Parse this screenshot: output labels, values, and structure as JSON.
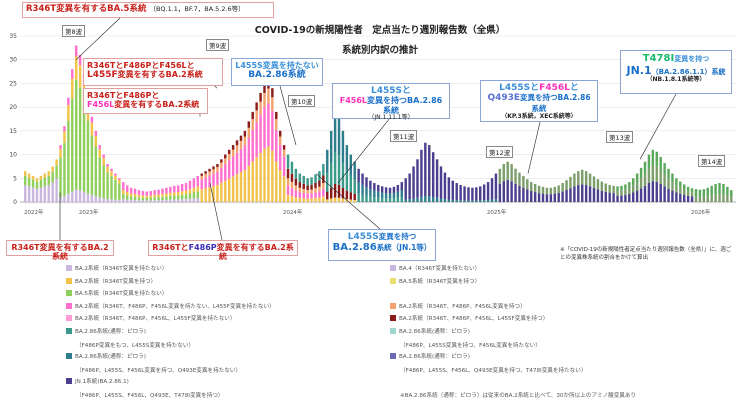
{
  "header": {
    "y_unit": "",
    "title_line1": "COVID-19の新規陽性者　定点当たり週別報告数（全県）",
    "title_line2": "系統別内訳の推計"
  },
  "note_right": "※「COVID-19の新規陽性者定点当たり週別報告数（全県）」に、週ごとの変異株系統の割合をかけて算出",
  "colors": {
    "ba2": "#c9b7e0",
    "ba4": "#c9b7e0",
    "ba5": "#8fcf5c",
    "ba275": "#f2c24a",
    "ba2_r346t": "#ff6fcf",
    "ba2_f456l": "#f2a36b",
    "ba2_l455f": "#8b1a1a",
    "ba286": "#3a9a8a",
    "ba286_l455s": "#2e7d8c",
    "jn1": "#4b3f8f",
    "kp3": "#6b6bb5"
  },
  "callouts": {
    "c1": {
      "main_pre": "R346T変異を有する",
      "main_accent": "BA.5",
      "main_post": "系統",
      "sub": "（BQ.1.1，BF.7，BA.5.2.6等）"
    },
    "c2": {
      "line1_pre": "R346Tと",
      "line1_mid": "F486P",
      "line1_and": "と",
      "line1_acc2": "F456L",
      "line1_end": "と",
      "line2_accent": "L455F",
      "line2_post": "変異を有するBA.2系統"
    },
    "c3": {
      "line1_pre": "R346TとF486Pと",
      "line2_accent": "F456L",
      "line2_post": "変異を有するBA.2系統"
    },
    "c4": {
      "line1_accent": "L455S",
      "line1_post": "変異を持たない",
      "line2": "BA.2.86系統"
    },
    "c5": {
      "line1": "L455Sと",
      "line2_accent": "F456L",
      "line2_post": "変異を持つBA.2.86系統",
      "sub": "（JN.1.11.1等）"
    },
    "c6": {
      "line1_a": "L455S",
      "line1_b": "と",
      "line1_c": "F456L",
      "line1_d": "と",
      "line2_accent": "Q493E",
      "line2_post": "変異を持つBA.2.86系統",
      "sub": "（KP.3系統，XEC系統等）"
    },
    "c7": {
      "line1_accent": "T478I",
      "line1_post": "変異を持つ",
      "line2_accent": "JN.1",
      "line2_post": "（BA.2.86.1.1）系統",
      "sub": "（NB.1.8.1系統等）"
    },
    "c8": {
      "text": "R346T変異を有するBA.2系統"
    },
    "c9": {
      "pre": "R346Tと",
      "accent": "F486P",
      "post": "変異を有するBA.2系統"
    },
    "c10": {
      "line1_accent": "L455S",
      "line1_post": "変異を持つ",
      "line2_accent": "BA.2.86",
      "line2_post": "系統（JN.1等）"
    }
  },
  "waves": [
    "第8波",
    "第9波",
    "第10波",
    "第11波",
    "第12波",
    "第13波",
    "第14波"
  ],
  "legend": [
    {
      "label": "BA.2系統（R346T変異を持たない）",
      "color": "#c9b7e0"
    },
    {
      "label": "BA.4（R346T変異を持たない）",
      "color": "#c9b7e0"
    },
    {
      "label": "BA.2系統（R346T変異を持つ）",
      "color": "#f2c24a"
    },
    {
      "label": "BA.5系統（R346T変異を持つ）",
      "color": "#e8e070"
    },
    {
      "label": "BA.5系統（R346T変異を持たない）",
      "color": "#8fcf5c"
    },
    {
      "label": "",
      "color": ""
    },
    {
      "label": "BA.2系統（R346T、F486P、F456L変異を持たない、L455F変異を持たない）",
      "color": "#ff6fcf"
    },
    {
      "label": "BA.2系統（R346T、F486P、F456L変異を持つ）",
      "color": "#f2a36b"
    },
    {
      "label": "BA.2系統（R346T、F486P、F456L、L455F変異を持たない）",
      "color": "#ff9ad5"
    },
    {
      "label": "BA.2系統（R346T、F486P、F456L、L455F変異を持つ）",
      "color": "#8b1a1a"
    },
    {
      "label": "BA.2.86系統(通称：ピロラ)",
      "color": "#3a9a8a"
    },
    {
      "label": "BA.2.86系統(通称：ピロラ)",
      "color": "#9fd6cf"
    },
    {
      "label": "（F486P変異をもつ、L455S変異を持たない）",
      "color": ""
    },
    {
      "label": "（F486P、L455S変異を持つ、F456L変異を持たない）",
      "color": ""
    },
    {
      "label": "BA.2.86系統(通称：ピロラ)",
      "color": "#2e7d8c"
    },
    {
      "label": "BA.2.86系統(通称：ピロラ)",
      "color": "#6b6bb5"
    },
    {
      "label": "（F486P、L455S、F456L変異を持つ、Q493E変異を持たない）",
      "color": ""
    },
    {
      "label": "（F486P、L455S、F456L、Q493E変異を持つ、T478I変異を持たない）",
      "color": ""
    },
    {
      "label": "JN.1系統(BA.2.86.1)",
      "color": "#4b3f8f"
    },
    {
      "label": "",
      "color": ""
    },
    {
      "label": "（F486P、L455S、F456L、Q493E、T478I変異を持つ）",
      "color": ""
    },
    {
      "label": "※BA.2.86系統（通称：ピロラ）は従来のBA.2系統と比べて、30か所以上のアミノ酸変異あり",
      "color": ""
    }
  ],
  "chart_data": {
    "type": "bar",
    "title": "COVID-19の新規陽性者　定点当たり週別報告数（全県） 系統別内訳の推計",
    "ylabel": "",
    "ylim": [
      0,
      35
    ],
    "yticks": [
      0,
      5,
      10,
      15,
      20,
      25,
      30,
      35
    ],
    "year_labels": [
      "2022年",
      "2023年",
      "2024年",
      "2025年",
      "2026年"
    ],
    "series_order": [
      "BA.2/BA.4",
      "BA.5",
      "BA.2.75",
      "BA.2(R346T,F486P)",
      "BA.2(F456L)",
      "BA.2(L455F)",
      "BA.2.86",
      "BA.2.86(L455S)",
      "JN.1",
      "KP.3/XEC",
      "JN.1(T478I)"
    ],
    "totals": [
      6.5,
      6.0,
      5.5,
      5.0,
      5.5,
      6.0,
      6.5,
      7.5,
      9,
      12,
      16,
      22,
      28,
      33,
      31,
      27,
      22,
      18,
      15,
      12,
      10,
      8,
      7,
      6,
      5,
      4.2,
      3.5,
      3,
      2.8,
      2.5,
      2.3,
      2.2,
      2.3,
      2.5,
      2.6,
      2.8,
      3,
      3.2,
      3.4,
      3.5,
      3.8,
      4,
      4.5,
      5,
      5.5,
      6,
      6.5,
      7,
      7.5,
      8,
      9,
      10,
      11,
      12,
      13,
      14,
      15,
      17,
      19,
      21,
      23,
      25,
      26,
      24,
      19,
      15,
      12,
      10,
      8.5,
      7,
      6,
      5.5,
      5,
      5.2,
      5.8,
      6.5,
      8,
      11,
      15,
      19,
      18,
      15,
      12,
      10,
      8.5,
      7,
      6,
      5.2,
      4.5,
      4,
      3.6,
      3.3,
      3.1,
      3,
      3.2,
      3.6,
      4.2,
      5,
      6,
      7.5,
      9,
      11,
      12.5,
      12,
      10.5,
      9,
      7.5,
      6.2,
      5.2,
      4.5,
      4,
      3.6,
      3.3,
      3.1,
      3,
      3.1,
      3.3,
      3.7,
      4.2,
      5,
      6,
      7,
      8,
      8.5,
      8,
      7,
      6.2,
      5.5,
      4.8,
      4.2,
      3.8,
      3.4,
      3.2,
      3,
      3,
      3.2,
      3.5,
      4,
      4.6,
      5.3,
      6,
      6.5,
      6.8,
      6.5,
      6,
      5.4,
      4.8,
      4.3,
      3.9,
      3.6,
      3.4,
      3.3,
      3.4,
      3.7,
      4.2,
      5,
      6,
      7.2,
      8.5,
      10,
      11,
      10.6,
      9.5,
      8.2,
      7,
      6,
      5,
      4.3,
      3.7,
      3.2,
      2.9,
      2.7,
      2.6,
      2.7,
      3,
      3.4,
      3.8,
      4,
      3.8,
      3.2,
      2.5
    ],
    "composition": [
      {
        "from": 0,
        "to": 8,
        "mix": {
          "BA.2/BA.4": 0.55,
          "BA.5": 0.3,
          "BA.2.75": 0.15
        }
      },
      {
        "from": 9,
        "to": 24,
        "mix": {
          "BA.2/BA.4": 0.08,
          "BA.5": 0.7,
          "BA.2.75": 0.15,
          "BA.2(R346T,F486P)": 0.07
        }
      },
      {
        "from": 25,
        "to": 44,
        "mix": {
          "BA.2/BA.4": 0.15,
          "BA.5": 0.25,
          "BA.2.75": 0.2,
          "BA.2(R346T,F486P)": 0.4
        }
      },
      {
        "from": 45,
        "to": 66,
        "mix": {
          "BA.2.75": 0.45,
          "BA.2(R346T,F486P)": 0.35,
          "BA.2(F456L)": 0.12,
          "BA.2(L455F)": 0.08
        }
      },
      {
        "from": 67,
        "to": 76,
        "mix": {
          "BA.2.75": 0.15,
          "BA.2(R346T,F486P)": 0.2,
          "BA.2(F456L)": 0.15,
          "BA.2(L455F)": 0.2,
          "BA.2.86": 0.3
        }
      },
      {
        "from": 77,
        "to": 84,
        "mix": {
          "BA.2.75": 0.05,
          "BA.2(L455F)": 0.15,
          "BA.2.86": 0.35,
          "BA.2.86(L455S)": 0.45
        }
      },
      {
        "from": 85,
        "to": 96,
        "mix": {
          "BA.2.86": 0.25,
          "BA.2.86(L455S)": 0.35,
          "JN.1": 0.4
        }
      },
      {
        "from": 97,
        "to": 120,
        "mix": {
          "BA.2.86(L455S)": 0.1,
          "JN.1": 0.9
        }
      },
      {
        "from": 121,
        "to": 150,
        "mix": {
          "JN.1": 0.55,
          "KP.3/XEC": 0.45
        }
      },
      {
        "from": 151,
        "to": 170,
        "mix": {
          "JN.1": 0.4,
          "KP.3/XEC": 0.3,
          "JN.1(T478I)": 0.3
        }
      },
      {
        "from": 171,
        "to": 181,
        "mix": {
          "KP.3/XEC": 0.4,
          "JN.1(T478I)": 0.6
        }
      }
    ],
    "series_colors": {
      "BA.2/BA.4": "#c9b7e0",
      "BA.5": "#8fcf5c",
      "BA.2.75": "#f2c24a",
      "BA.2(R346T,F486P)": "#ff6fcf",
      "BA.2(F456L)": "#f2a36b",
      "BA.2(L455F)": "#8b1a1a",
      "BA.2.86": "#3a9a8a",
      "BA.2.86(L455S)": "#2e7d8c",
      "JN.1": "#4b3f8f",
      "KP.3/XEC": "#7c9e6a",
      "JN.1(T478I)": "#5aa85a"
    },
    "wave_peaks": [
      13,
      60,
      79,
      102,
      127,
      158,
      177
    ]
  }
}
